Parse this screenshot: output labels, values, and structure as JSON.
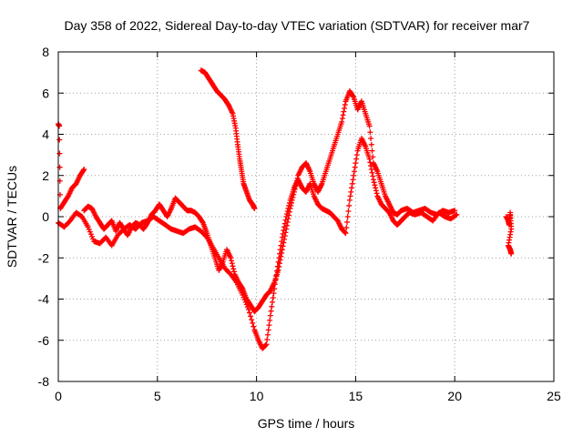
{
  "chart_data": {
    "type": "scatter",
    "title": "Day 358 of 2022, Sidereal Day-to-day VTEC variation (SDTVAR) for receiver mar7",
    "xlabel": "GPS time / hours",
    "ylabel": "SDTVAR / TECUs",
    "xlim": [
      0,
      25
    ],
    "ylim": [
      -8,
      8
    ],
    "xticks": [
      0,
      5,
      10,
      15,
      20,
      25
    ],
    "yticks": [
      -8,
      -6,
      -4,
      -2,
      0,
      2,
      4,
      6,
      8
    ],
    "grid": true,
    "marker": "+",
    "color": "#ff0000",
    "series": [
      {
        "name": "track-a",
        "points": [
          [
            0.0,
            -0.3
          ],
          [
            0.3,
            -0.5
          ],
          [
            0.6,
            -0.2
          ],
          [
            0.9,
            0.2
          ],
          [
            1.2,
            0.0
          ],
          [
            1.5,
            -0.5
          ],
          [
            1.8,
            -1.2
          ],
          [
            2.1,
            -1.3
          ],
          [
            2.4,
            -1.0
          ],
          [
            2.7,
            -1.4
          ],
          [
            3.0,
            -0.9
          ],
          [
            3.3,
            -0.6
          ],
          [
            3.6,
            -0.4
          ],
          [
            3.9,
            -0.6
          ],
          [
            4.2,
            -0.3
          ],
          [
            4.5,
            -0.2
          ],
          [
            4.8,
            0.0
          ],
          [
            5.1,
            -0.2
          ],
          [
            5.4,
            -0.4
          ],
          [
            5.7,
            -0.6
          ],
          [
            6.0,
            -0.7
          ],
          [
            6.3,
            -0.8
          ],
          [
            6.6,
            -0.6
          ],
          [
            6.9,
            -0.5
          ],
          [
            7.2,
            -0.7
          ],
          [
            7.5,
            -1.0
          ],
          [
            7.8,
            -1.5
          ],
          [
            8.1,
            -2.0
          ],
          [
            8.4,
            -2.5
          ],
          [
            8.7,
            -2.8
          ],
          [
            9.0,
            -3.2
          ],
          [
            9.3,
            -3.8
          ],
          [
            9.6,
            -4.5
          ],
          [
            9.9,
            -5.5
          ],
          [
            10.1,
            -6.0
          ],
          [
            10.3,
            -6.4
          ],
          [
            10.5,
            -6.2
          ],
          [
            10.7,
            -4.8
          ],
          [
            10.9,
            -3.5
          ],
          [
            11.1,
            -2.2
          ],
          [
            11.3,
            -1.0
          ],
          [
            11.5,
            0.0
          ],
          [
            11.7,
            0.8
          ],
          [
            11.9,
            1.4
          ],
          [
            12.1,
            1.8
          ],
          [
            12.3,
            1.4
          ],
          [
            12.5,
            1.2
          ],
          [
            12.7,
            1.6
          ],
          [
            12.9,
            1.0
          ],
          [
            13.1,
            0.6
          ],
          [
            13.3,
            0.4
          ],
          [
            13.5,
            0.3
          ],
          [
            13.7,
            0.2
          ],
          [
            13.9,
            0.0
          ],
          [
            14.1,
            -0.2
          ],
          [
            14.3,
            -0.6
          ],
          [
            14.5,
            -0.8
          ],
          [
            14.7,
            0.8
          ],
          [
            14.9,
            2.0
          ],
          [
            15.1,
            3.2
          ],
          [
            15.3,
            3.8
          ],
          [
            15.5,
            3.4
          ],
          [
            15.7,
            2.8
          ],
          [
            15.9,
            1.8
          ],
          [
            16.1,
            1.0
          ],
          [
            16.3,
            0.6
          ],
          [
            16.5,
            0.4
          ],
          [
            16.7,
            0.2
          ],
          [
            16.9,
            -0.2
          ],
          [
            17.1,
            -0.4
          ],
          [
            17.3,
            -0.2
          ],
          [
            17.5,
            0.0
          ],
          [
            17.7,
            0.2
          ],
          [
            18.0,
            0.1
          ],
          [
            18.3,
            0.2
          ],
          [
            18.6,
            0.0
          ],
          [
            18.9,
            -0.2
          ],
          [
            19.2,
            0.2
          ],
          [
            19.5,
            0.0
          ],
          [
            19.8,
            -0.1
          ],
          [
            20.1,
            0.1
          ]
        ]
      },
      {
        "name": "track-b",
        "points": [
          [
            0.0,
            4.5
          ],
          [
            0.05,
            4.4
          ],
          [
            0.1,
            0.4
          ],
          [
            0.3,
            0.7
          ],
          [
            0.5,
            1.0
          ],
          [
            0.7,
            1.4
          ],
          [
            0.9,
            1.6
          ],
          [
            1.1,
            2.0
          ],
          [
            1.3,
            2.3
          ]
        ]
      },
      {
        "name": "track-c",
        "points": [
          [
            1.3,
            0.3
          ],
          [
            1.5,
            0.5
          ],
          [
            1.7,
            0.4
          ],
          [
            1.9,
            0.0
          ],
          [
            2.1,
            -0.3
          ],
          [
            2.3,
            -0.6
          ],
          [
            2.5,
            -0.4
          ],
          [
            2.7,
            -0.2
          ],
          [
            2.9,
            -0.7
          ],
          [
            3.1,
            -0.3
          ],
          [
            3.3,
            -0.6
          ],
          [
            3.5,
            -0.9
          ],
          [
            3.7,
            -0.5
          ],
          [
            3.9,
            -0.3
          ],
          [
            4.1,
            -0.4
          ],
          [
            4.3,
            -0.6
          ],
          [
            4.5,
            -0.3
          ],
          [
            4.7,
            0.1
          ],
          [
            4.9,
            0.3
          ],
          [
            5.1,
            0.6
          ],
          [
            5.3,
            0.3
          ],
          [
            5.5,
            0.0
          ],
          [
            5.7,
            0.4
          ],
          [
            5.9,
            0.9
          ],
          [
            6.1,
            0.7
          ],
          [
            6.3,
            0.5
          ],
          [
            6.5,
            0.3
          ],
          [
            6.7,
            0.3
          ],
          [
            6.9,
            0.2
          ],
          [
            7.1,
            0.0
          ],
          [
            7.3,
            -0.3
          ],
          [
            7.5,
            -0.8
          ],
          [
            7.7,
            -1.4
          ],
          [
            7.9,
            -2.0
          ],
          [
            8.1,
            -2.6
          ],
          [
            8.3,
            -2.2
          ],
          [
            8.5,
            -1.6
          ],
          [
            8.7,
            -2.0
          ],
          [
            8.9,
            -2.8
          ],
          [
            9.1,
            -3.2
          ],
          [
            9.3,
            -3.5
          ],
          [
            9.5,
            -4.0
          ],
          [
            9.7,
            -4.3
          ],
          [
            9.9,
            -4.6
          ],
          [
            10.1,
            -4.4
          ],
          [
            10.3,
            -4.1
          ],
          [
            10.5,
            -3.8
          ],
          [
            10.7,
            -3.6
          ],
          [
            10.9,
            -3.2
          ],
          [
            11.1,
            -2.6
          ],
          [
            11.3,
            -1.6
          ],
          [
            11.5,
            -0.6
          ],
          [
            11.7,
            0.4
          ],
          [
            11.9,
            1.2
          ],
          [
            12.1,
            2.0
          ],
          [
            12.3,
            2.4
          ],
          [
            12.5,
            2.6
          ],
          [
            12.7,
            2.2
          ],
          [
            12.9,
            1.6
          ],
          [
            13.1,
            1.2
          ],
          [
            13.3,
            1.6
          ],
          [
            13.5,
            2.2
          ],
          [
            13.7,
            2.8
          ],
          [
            13.9,
            3.4
          ],
          [
            14.1,
            4.0
          ],
          [
            14.3,
            4.6
          ],
          [
            14.5,
            5.6
          ],
          [
            14.7,
            6.1
          ],
          [
            14.9,
            5.8
          ],
          [
            15.1,
            5.2
          ],
          [
            15.3,
            5.6
          ],
          [
            15.5,
            5.0
          ],
          [
            15.7,
            4.4
          ],
          [
            15.9,
            2.6
          ],
          [
            16.1,
            2.2
          ],
          [
            16.3,
            1.6
          ],
          [
            16.5,
            1.0
          ],
          [
            16.7,
            0.6
          ],
          [
            16.9,
            0.2
          ],
          [
            17.1,
            0.1
          ],
          [
            17.3,
            0.3
          ],
          [
            17.6,
            0.4
          ],
          [
            17.9,
            0.2
          ],
          [
            18.2,
            0.3
          ],
          [
            18.5,
            0.4
          ],
          [
            18.8,
            0.2
          ],
          [
            19.1,
            0.1
          ],
          [
            19.4,
            0.3
          ],
          [
            19.7,
            0.2
          ],
          [
            20.0,
            0.3
          ]
        ]
      },
      {
        "name": "track-d",
        "points": [
          [
            7.2,
            7.1
          ],
          [
            7.4,
            7.0
          ],
          [
            7.6,
            6.7
          ],
          [
            7.8,
            6.4
          ],
          [
            8.0,
            6.1
          ],
          [
            8.2,
            5.9
          ],
          [
            8.4,
            5.7
          ],
          [
            8.6,
            5.4
          ],
          [
            8.8,
            5.0
          ],
          [
            8.95,
            4.3
          ],
          [
            9.05,
            3.5
          ],
          [
            9.15,
            2.8
          ],
          [
            9.25,
            2.2
          ],
          [
            9.35,
            1.6
          ],
          [
            9.5,
            1.2
          ],
          [
            9.65,
            0.8
          ],
          [
            9.8,
            0.6
          ],
          [
            9.9,
            0.4
          ]
        ]
      },
      {
        "name": "track-e",
        "points": [
          [
            22.6,
            0.0
          ],
          [
            22.7,
            -0.2
          ],
          [
            22.75,
            -0.4
          ],
          [
            22.8,
            0.2
          ],
          [
            22.85,
            -0.6
          ],
          [
            22.7,
            -1.4
          ],
          [
            22.8,
            -1.6
          ],
          [
            22.85,
            -1.8
          ]
        ]
      }
    ]
  }
}
